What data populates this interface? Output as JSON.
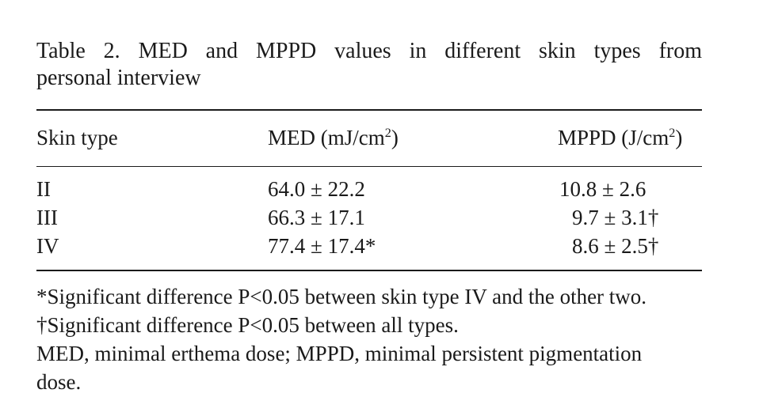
{
  "table": {
    "caption_line1": "Table 2. MED and MPPD values in different skin types from",
    "caption_line2": "personal interview",
    "headers": {
      "skin_type": "Skin type",
      "med_main": "MED (mJ/cm",
      "med_sup": "2",
      "med_close": ")",
      "mppd_main": "MPPD (J/cm",
      "mppd_sup": "2",
      "mppd_close": ")"
    },
    "rows": [
      {
        "skin_type": "II",
        "med": "64.0 ± 22.2",
        "mppd": "10.8 ± 2.6"
      },
      {
        "skin_type": "III",
        "med": "66.3 ± 17.1",
        "mppd": "9.7 ± 3.1†"
      },
      {
        "skin_type": "IV",
        "med": "77.4 ± 17.4*",
        "mppd": "8.6 ± 2.5†"
      }
    ]
  },
  "notes": {
    "note1": "*Significant difference P<0.05 between skin type IV and the other two.",
    "note2": "†Significant difference P<0.05 between all types.",
    "note3": "MED, minimal erthema dose; MPPD, minimal persistent pigmentation dose."
  }
}
